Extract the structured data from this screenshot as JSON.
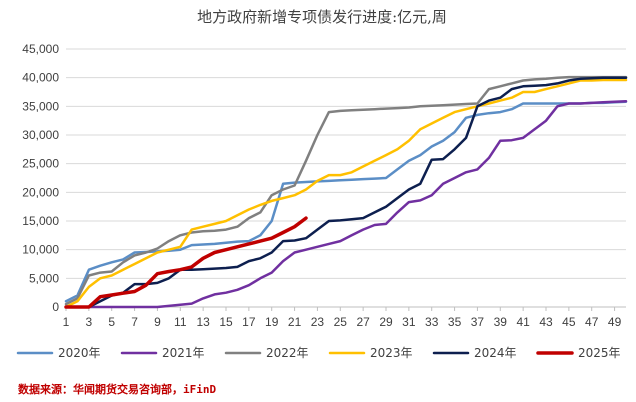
{
  "chart_data": {
    "type": "line",
    "title": "地方政府新增专项债发行进度:亿元,周",
    "xlabel": "",
    "ylabel": "",
    "x": [
      1,
      2,
      3,
      4,
      5,
      6,
      7,
      8,
      9,
      10,
      11,
      12,
      13,
      14,
      15,
      16,
      17,
      18,
      19,
      20,
      21,
      22,
      23,
      24,
      25,
      26,
      27,
      28,
      29,
      30,
      31,
      32,
      33,
      34,
      35,
      36,
      37,
      38,
      39,
      40,
      41,
      42,
      43,
      44,
      45,
      46,
      47,
      48,
      49,
      50
    ],
    "x_ticks": [
      1,
      3,
      5,
      7,
      9,
      11,
      13,
      15,
      17,
      19,
      21,
      23,
      25,
      27,
      29,
      31,
      33,
      35,
      37,
      39,
      41,
      43,
      45,
      47,
      49
    ],
    "ylim": [
      0,
      45000
    ],
    "y_ticks": [
      0,
      5000,
      10000,
      15000,
      20000,
      25000,
      30000,
      35000,
      40000,
      45000
    ],
    "y_tick_labels": [
      "0",
      "5,000",
      "10,000",
      "15,000",
      "20,000",
      "25,000",
      "30,000",
      "35,000",
      "40,000",
      "45,000"
    ],
    "grid": "horizontal",
    "legend_position": "bottom",
    "series": [
      {
        "name": "2020年",
        "color": "#5b8ec6",
        "width": 2.5,
        "values": [
          1000,
          2000,
          6500,
          7200,
          7800,
          8300,
          9500,
          9600,
          9700,
          9800,
          10000,
          10800,
          10900,
          11000,
          11200,
          11400,
          11500,
          12500,
          15000,
          21500,
          21700,
          21800,
          21900,
          22000,
          22100,
          22200,
          22300,
          22400,
          22500,
          24000,
          25500,
          26500,
          28000,
          29000,
          30500,
          33000,
          33500,
          33800,
          34000,
          34500,
          35500,
          35500,
          35500,
          35500,
          35500,
          35500,
          35600,
          35600,
          35700,
          35800
        ]
      },
      {
        "name": "2021年",
        "color": "#7030a0",
        "width": 2.5,
        "values": [
          0,
          0,
          0,
          0,
          0,
          0,
          0,
          0,
          0,
          200,
          400,
          600,
          1500,
          2200,
          2500,
          3000,
          3800,
          5000,
          6000,
          8000,
          9500,
          10000,
          10500,
          11000,
          11500,
          12500,
          13500,
          14300,
          14500,
          16500,
          18300,
          18600,
          19500,
          21500,
          22500,
          23500,
          24000,
          26000,
          29000,
          29100,
          29500,
          31000,
          32500,
          35000,
          35500,
          35500,
          35600,
          35700,
          35800,
          35900
        ]
      },
      {
        "name": "2022年",
        "color": "#808080",
        "width": 2.5,
        "values": [
          500,
          1500,
          5500,
          6000,
          6200,
          7800,
          9000,
          9500,
          10200,
          11500,
          12500,
          13000,
          13200,
          13300,
          13500,
          14000,
          15500,
          16500,
          19500,
          20500,
          21200,
          25500,
          30000,
          34000,
          34200,
          34300,
          34400,
          34500,
          34600,
          34700,
          34800,
          35000,
          35100,
          35200,
          35300,
          35400,
          35500,
          38000,
          38500,
          39000,
          39500,
          39700,
          39800,
          40000,
          40100,
          40100,
          40100,
          40100,
          40100,
          40100
        ]
      },
      {
        "name": "2023年",
        "color": "#ffc000",
        "width": 2.5,
        "values": [
          0,
          1000,
          3500,
          5000,
          5500,
          6500,
          7500,
          8500,
          9500,
          10000,
          10500,
          13500,
          14000,
          14500,
          15000,
          16000,
          17000,
          17800,
          18500,
          19000,
          19500,
          20500,
          22000,
          23000,
          23000,
          23500,
          24500,
          25500,
          26500,
          27500,
          29000,
          31000,
          32000,
          33000,
          34000,
          34500,
          35000,
          35500,
          36000,
          36500,
          37500,
          37500,
          38000,
          38500,
          39000,
          39500,
          39500,
          39600,
          39600,
          39600
        ]
      },
      {
        "name": "2024年",
        "color": "#0d1f4f",
        "width": 2.5,
        "values": [
          0,
          0,
          0,
          1000,
          2000,
          2500,
          4000,
          4000,
          4200,
          5000,
          6500,
          6500,
          6600,
          6700,
          6800,
          7000,
          8000,
          8500,
          9500,
          11500,
          11600,
          12000,
          13500,
          15000,
          15100,
          15300,
          15500,
          16500,
          17500,
          19000,
          20500,
          21500,
          25700,
          25800,
          27500,
          29500,
          35000,
          36000,
          36500,
          38000,
          38500,
          38600,
          38700,
          39000,
          39500,
          39800,
          39900,
          40000,
          40000,
          40000
        ]
      },
      {
        "name": "2025年",
        "color": "#c00000",
        "width": 3.5,
        "values": [
          0,
          0,
          0,
          1800,
          2100,
          2400,
          2700,
          3800,
          5800,
          6200,
          6500,
          7000,
          8500,
          9500,
          10000,
          10500,
          11000,
          11500,
          12000,
          13000,
          14000,
          15500,
          null,
          null,
          null,
          null,
          null,
          null,
          null,
          null,
          null,
          null,
          null,
          null,
          null,
          null,
          null,
          null,
          null,
          null,
          null,
          null,
          null,
          null,
          null,
          null,
          null,
          null,
          null,
          null
        ]
      }
    ]
  },
  "source": "数据来源：华闻期货交易咨询部，iFinD"
}
